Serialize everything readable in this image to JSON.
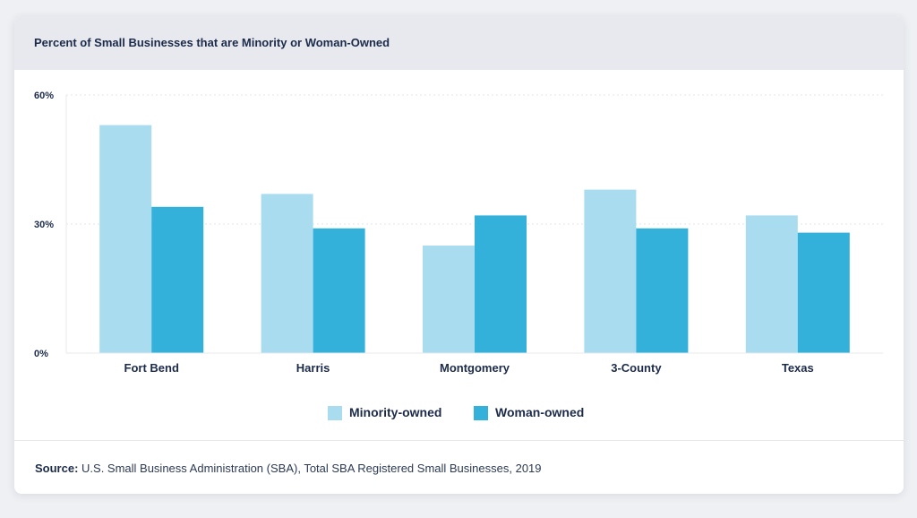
{
  "card": {
    "title": "Percent of Small Businesses that are Minority or Woman-Owned"
  },
  "chart_data": {
    "type": "bar",
    "title": "Percent of Small Businesses that are Minority or Woman-Owned",
    "categories": [
      "Fort Bend",
      "Harris",
      "Montgomery",
      "3-County",
      "Texas"
    ],
    "series": [
      {
        "name": "Minority-owned",
        "color": "#a9dcef",
        "values": [
          53,
          37,
          25,
          38,
          32
        ]
      },
      {
        "name": "Woman-owned",
        "color": "#33b1da",
        "values": [
          34,
          29,
          32,
          29,
          28
        ]
      }
    ],
    "ylim": [
      0,
      60
    ],
    "yticks": [
      0,
      30,
      60
    ],
    "ytick_labels": [
      "0%",
      "30%",
      "60%"
    ],
    "xlabel": "",
    "ylabel": "",
    "grid": true,
    "legend_position": "bottom-center"
  },
  "legend": {
    "items": [
      {
        "label": "Minority-owned",
        "color": "#a9dcef"
      },
      {
        "label": "Woman-owned",
        "color": "#33b1da"
      }
    ]
  },
  "footer": {
    "source_label": "Source:",
    "source_text": " U.S. Small Business Administration (SBA), Total SBA Registered Small Businesses, 2019"
  }
}
